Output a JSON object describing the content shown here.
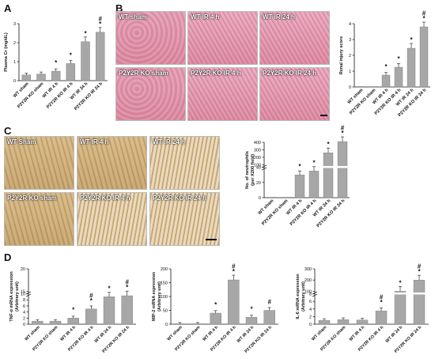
{
  "panels": {
    "A": "A",
    "B": "B",
    "C": "C",
    "D": "D"
  },
  "images_b": [
    {
      "label": "WT sham"
    },
    {
      "label": "WT IR 4 h"
    },
    {
      "label": "WT IR 24 h"
    },
    {
      "label": "P2Y2R KO sham"
    },
    {
      "label": "P2Y2R KO IR 4 h"
    },
    {
      "label": "P2Y2R KO IR 24 h"
    }
  ],
  "images_c": [
    {
      "label": "WT Sham"
    },
    {
      "label": "WT IR 4 h"
    },
    {
      "label": "WT IR 24 h"
    },
    {
      "label": "P2Y2R KO sham"
    },
    {
      "label": "P2Y2R KO IR 4 h"
    },
    {
      "label": "P2Y2R KO IR 24 h"
    }
  ],
  "chart_data": [
    {
      "id": "A",
      "type": "bar",
      "categories": [
        "WT sham",
        "P2Y2R KO sham",
        "WT IR 4 h",
        "P2Y2R KO IR 4 h",
        "WT IR 24 h",
        "P2Y2R KO IR 24 h"
      ],
      "values": [
        0.3,
        0.35,
        0.5,
        0.9,
        2.05,
        2.55
      ],
      "markers": [
        "",
        "",
        "*",
        "*",
        "*",
        "#*"
      ],
      "ylabel": "Plasma Cr (mg/dL)",
      "ylim": [
        0,
        3
      ],
      "yticks": [
        0,
        1,
        2,
        3
      ]
    },
    {
      "id": "B",
      "type": "bar",
      "categories": [
        "WT sham",
        "P2Y2R KO sham",
        "WT IR 4 h",
        "P2Y2R KO IR 4 h",
        "WT IR 24 h",
        "P2Y2R KO IR 24 h"
      ],
      "values": [
        0,
        0,
        0.75,
        1.25,
        2.45,
        3.8
      ],
      "markers": [
        "",
        "",
        "*",
        "*",
        "*",
        "#*"
      ],
      "ylabel": "Renal injury score",
      "ylim": [
        0,
        4
      ],
      "yticks": [
        0,
        1,
        2,
        3,
        4
      ]
    },
    {
      "id": "C",
      "type": "bar",
      "categories": [
        "WT sham",
        "P2Y2R KO sham",
        "WT IR 4 h",
        "P2Y2R KO IR 4 h",
        "WT IR 24 h",
        "P2Y2R KO IR 24 h"
      ],
      "values": [
        0,
        0,
        30,
        35,
        260,
        410
      ],
      "markers": [
        "",
        "",
        "*",
        "*",
        "*",
        "#*"
      ],
      "ylabel": "No. of neutrophils",
      "ylabel2": "(per X200 field)",
      "ylim": [
        0,
        450
      ],
      "yticks": [
        0,
        20,
        40,
        100,
        200,
        300,
        400
      ],
      "broken": true
    },
    {
      "id": "D1",
      "type": "bar",
      "categories": [
        "WT sham",
        "P2Y2R KO sham",
        "WT IR 4 h",
        "P2Y2R KO IR 4 h",
        "WT IR 24 h",
        "P2Y2R KO IR 24 h"
      ],
      "values": [
        1,
        1,
        2,
        5,
        9,
        14
      ],
      "markers": [
        "",
        "",
        "*",
        "#*",
        "*",
        "#*"
      ],
      "ylabel": "TNF-α mRNA expression",
      "ylabel2": "(Arbitrary unit)",
      "yticks": [
        0,
        2,
        4,
        6,
        8,
        10,
        15,
        20
      ],
      "broken": true
    },
    {
      "id": "D2",
      "type": "bar",
      "categories": [
        "WT sham",
        "P2Y2R KO sham",
        "WT IR 4 h",
        "P2Y2R KO IR 4 h",
        "WT IR 24 h",
        "P2Y2R KO IR 24 h"
      ],
      "values": [
        1,
        1,
        40,
        160,
        25,
        50
      ],
      "markers": [
        "",
        "",
        "*",
        "#*",
        "*",
        "#"
      ],
      "ylabel": "MIP-2 mRNA expression",
      "ylabel2": "(Arbitrary unit)",
      "ylim": [
        0,
        200
      ],
      "yticks": [
        0,
        50,
        100,
        150,
        200
      ]
    },
    {
      "id": "D3",
      "type": "bar",
      "categories": [
        "WT sham",
        "P2Y2R KO sham",
        "WT IR 4 h",
        "P2Y2R KO IR 4 h",
        "WT IR 24 h",
        "P2Y2R KO IR 24 h"
      ],
      "values": [
        1,
        1.2,
        1.1,
        3.5,
        100,
        200
      ],
      "markers": [
        "",
        "",
        "",
        "#*",
        "*",
        "#*"
      ],
      "ylabel": "IL-6 mRNA expression",
      "ylabel2": "(Arbitrary unit)",
      "yticks": [
        0,
        2,
        4,
        6,
        8,
        100,
        200,
        300
      ],
      "broken": true
    }
  ]
}
